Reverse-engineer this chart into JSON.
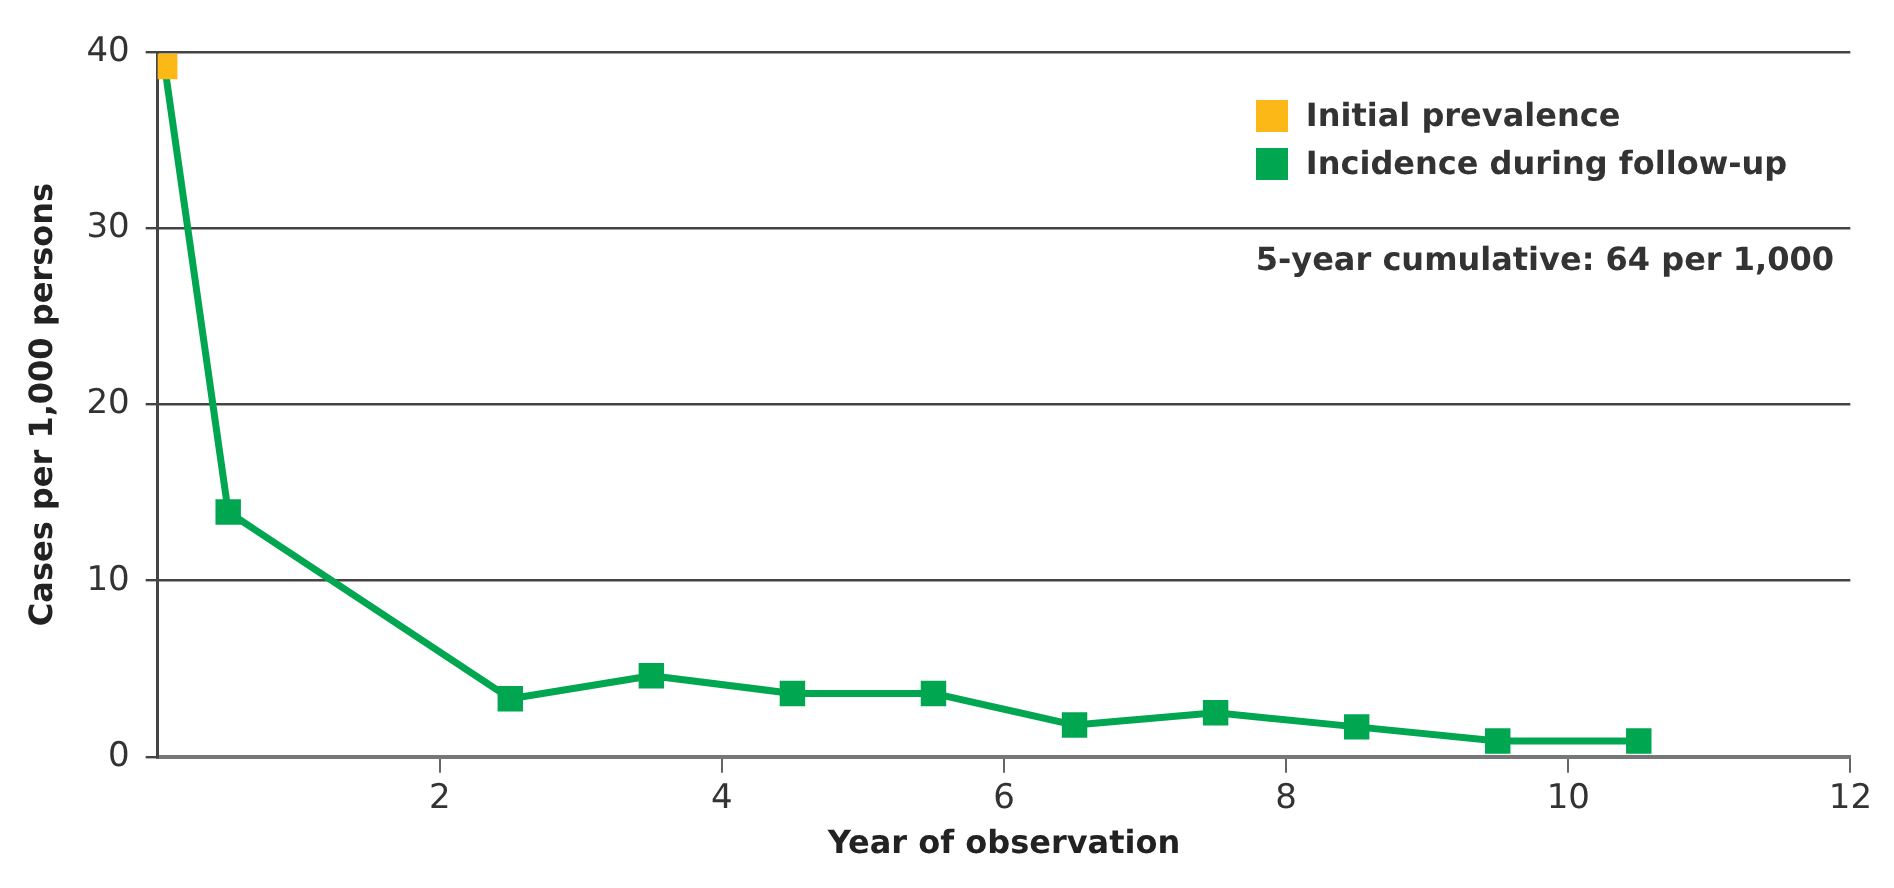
{
  "chart_data": {
    "type": "line",
    "xlabel": "Year of observation",
    "ylabel": "Cases per 1,000 persons",
    "xlim": [
      0,
      12
    ],
    "xticks": [
      2,
      4,
      6,
      8,
      10,
      12
    ],
    "ylim": [
      0,
      40
    ],
    "yticks": [
      0,
      10,
      20,
      30,
      40
    ],
    "grid": "y",
    "legend": "top right",
    "marker": "square",
    "line_style": "solid",
    "annotations": [
      "5-year cumulative: 64 per 1,000"
    ],
    "series": [
      {
        "name": "Incidence during follow-up",
        "color": "#00a650",
        "x": [
          0.05,
          0.5,
          2.5,
          3.5,
          4.5,
          5.5,
          6.5,
          7.5,
          8.5,
          9.5,
          10.5
        ],
        "values": [
          39.2,
          13.9,
          3.3,
          4.6,
          3.6,
          3.6,
          1.8,
          2.5,
          1.7,
          0.9,
          0.9
        ]
      },
      {
        "name": "Initial prevalence",
        "color": "#fbb817",
        "type": "scatter",
        "x": [
          0.05
        ],
        "values": [
          39.2
        ]
      }
    ]
  }
}
